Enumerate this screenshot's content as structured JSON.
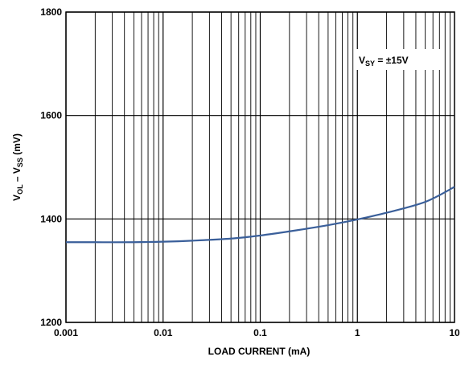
{
  "chart_data": {
    "type": "line",
    "x_scale": "log",
    "y_scale": "linear",
    "xlim": [
      0.001,
      10
    ],
    "ylim": [
      1200,
      1800
    ],
    "grid": true,
    "x_ticks": [
      0.001,
      0.01,
      0.1,
      1,
      10
    ],
    "x_tick_labels": [
      "0.001",
      "0.01",
      "0.1",
      "1",
      "10"
    ],
    "y_ticks": [
      1200,
      1400,
      1600,
      1800
    ],
    "y_tick_labels": [
      "1200",
      "1400",
      "1600",
      "1800"
    ],
    "xlabel": "LOAD CURRENT (mA)",
    "ylabel": {
      "main": "V",
      "sub1": "OL",
      "mid": " – V",
      "sub2": "SS",
      "end": " (mV)"
    },
    "annotation": {
      "main": "V",
      "sub": "SY",
      "rest": " = ±15V"
    },
    "series": [
      {
        "color": "#3a5f9a",
        "x": [
          0.001,
          0.002,
          0.005,
          0.01,
          0.02,
          0.05,
          0.1,
          0.2,
          0.5,
          1,
          2,
          5,
          10
        ],
        "y": [
          1355,
          1355,
          1355,
          1356,
          1358,
          1362,
          1368,
          1376,
          1388,
          1399,
          1412,
          1433,
          1462
        ]
      }
    ]
  }
}
